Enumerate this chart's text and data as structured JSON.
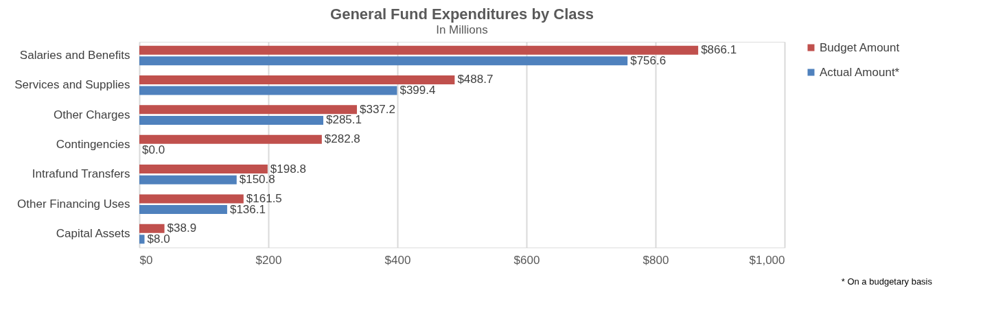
{
  "chart_data": {
    "type": "bar",
    "orientation": "horizontal",
    "title": "General Fund Expenditures by Class",
    "subtitle": "In Millions",
    "categories": [
      "Salaries and Benefits",
      "Services and Supplies",
      "Other Charges",
      "Contingencies",
      "Intrafund Transfers",
      "Other Financing Uses",
      "Capital Assets"
    ],
    "series": [
      {
        "name": "Budget Amount",
        "color": "#c0504d",
        "values": [
          866.1,
          488.7,
          337.2,
          282.8,
          198.8,
          161.5,
          38.9
        ],
        "value_labels": [
          "$866.1",
          "$488.7",
          "$337.2",
          "$282.8",
          "$198.8",
          "$161.5",
          "$38.9"
        ]
      },
      {
        "name": "Actual Amount*",
        "color": "#4f81bd",
        "values": [
          756.6,
          399.4,
          285.1,
          0.0,
          150.8,
          136.1,
          8.0
        ],
        "value_labels": [
          "$756.6",
          "$399.4",
          "$285.1",
          "$0.0",
          "$150.8",
          "$136.1",
          "$8.0"
        ]
      }
    ],
    "xlim": [
      0,
      1000
    ],
    "xticks": [
      {
        "value": 0,
        "label": "$0"
      },
      {
        "value": 200,
        "label": "$200"
      },
      {
        "value": 400,
        "label": "$400"
      },
      {
        "value": 600,
        "label": "$600"
      },
      {
        "value": 800,
        "label": "$800"
      },
      {
        "value": 1000,
        "label": "$1,000"
      }
    ],
    "grid": "x",
    "legend": "right",
    "annotations": [
      "* On a budgetary basis"
    ]
  }
}
